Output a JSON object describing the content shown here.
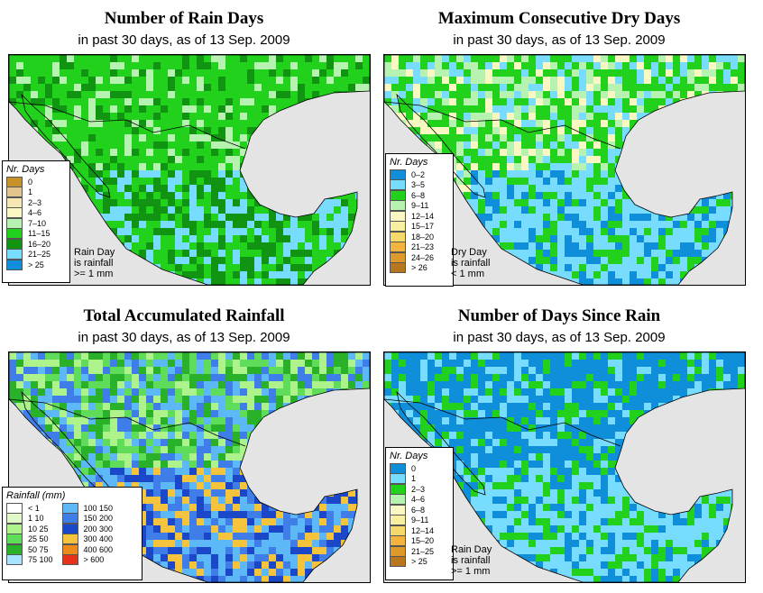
{
  "panels": [
    {
      "title": "Number of Rain Days",
      "subtitle": "in past 30 days, as of  13 Sep. 2009",
      "legend_title": "Nr. Days",
      "legend_items": [
        {
          "label": "0",
          "color": "#c8922a"
        },
        {
          "label": "1",
          "color": "#e2c48c"
        },
        {
          "label": "2–3",
          "color": "#f5e7b4"
        },
        {
          "label": "4–6",
          "color": "#f9f8c2"
        },
        {
          "label": "7–10",
          "color": "#b6f2b0"
        },
        {
          "label": "11–15",
          "color": "#22d11c"
        },
        {
          "label": "16–20",
          "color": "#119411"
        },
        {
          "label": "21–25",
          "color": "#78dcff"
        },
        {
          "label": "> 25",
          "color": "#0f8fd9"
        }
      ],
      "note": [
        "Rain Day",
        "is rainfall",
        ">= 1 mm"
      ],
      "palette": [
        "#22d11c",
        "#22d11c",
        "#119411",
        "#b6f2b0",
        "#22d11c"
      ],
      "palette_south": [
        "#78dcff",
        "#22d11c",
        "#119411"
      ]
    },
    {
      "title": "Maximum Consecutive Dry Days",
      "subtitle": "in past 30 days, as of  13 Sep. 2009",
      "legend_title": "Nr. Days",
      "legend_items": [
        {
          "label": "0–2",
          "color": "#0f8fd9"
        },
        {
          "label": "3–5",
          "color": "#78dcff"
        },
        {
          "label": "6–8",
          "color": "#22d11c"
        },
        {
          "label": "9–11",
          "color": "#b6f2b0"
        },
        {
          "label": "12–14",
          "color": "#f9f8c2"
        },
        {
          "label": "15–17",
          "color": "#f8f0a0"
        },
        {
          "label": "18–20",
          "color": "#f7d86a"
        },
        {
          "label": "21–23",
          "color": "#f2b43c"
        },
        {
          "label": "24–26",
          "color": "#dd9a2a"
        },
        {
          "label": "> 26",
          "color": "#b8761e"
        }
      ],
      "note": [
        "Dry Day",
        "is rainfall",
        "< 1 mm"
      ],
      "palette": [
        "#22d11c",
        "#b6f2b0",
        "#78dcff",
        "#22d11c",
        "#f9f8c2"
      ],
      "palette_south": [
        "#78dcff",
        "#78dcff",
        "#0f8fd9",
        "#22d11c"
      ]
    },
    {
      "title": "Total Accumulated Rainfall",
      "subtitle": "in past 30 days, as of  13 Sep. 2009",
      "legend_title": "Rainfall (mm)",
      "legend_items_left": [
        {
          "label": "< 1",
          "color": "#ffffff"
        },
        {
          "label": "1    10",
          "color": "#e2f8c8"
        },
        {
          "label": "10    25",
          "color": "#aef28c"
        },
        {
          "label": "25    50",
          "color": "#5fdc5a"
        },
        {
          "label": "50    75",
          "color": "#2ab12a"
        },
        {
          "label": "75    100",
          "color": "#a8e4ff"
        }
      ],
      "legend_items_right": [
        {
          "label": "100    150",
          "color": "#5db8f7"
        },
        {
          "label": "150    200",
          "color": "#3f7de8"
        },
        {
          "label": "200    300",
          "color": "#1a48c8"
        },
        {
          "label": "300    400",
          "color": "#f6c33c"
        },
        {
          "label": "400    600",
          "color": "#ee8a1c"
        },
        {
          "label": "> 600",
          "color": "#e6321a"
        }
      ],
      "palette": [
        "#5fdc5a",
        "#aef28c",
        "#3f7de8",
        "#5db8f7",
        "#2ab12a"
      ],
      "palette_south": [
        "#3f7de8",
        "#1a48c8",
        "#5db8f7",
        "#f6c33c"
      ]
    },
    {
      "title": "Number of Days Since Rain",
      "subtitle": "in past 30 days, as of  13 Sep. 2009",
      "legend_title": "Nr. Days",
      "legend_items": [
        {
          "label": "0",
          "color": "#0f8fd9"
        },
        {
          "label": "1",
          "color": "#78dcff"
        },
        {
          "label": "2–3",
          "color": "#22d11c"
        },
        {
          "label": "4–6",
          "color": "#b6f2b0"
        },
        {
          "label": "6–8",
          "color": "#f9f8c2"
        },
        {
          "label": "9–11",
          "color": "#f8f0a0"
        },
        {
          "label": "12–14",
          "color": "#f7d86a"
        },
        {
          "label": "15–20",
          "color": "#f2b43c"
        },
        {
          "label": "21–25",
          "color": "#dd9a2a"
        },
        {
          "label": "> 25",
          "color": "#b8761e"
        }
      ],
      "note": [
        "Rain Day",
        "is rainfall",
        ">= 1 mm"
      ],
      "palette": [
        "#0f8fd9",
        "#0f8fd9",
        "#78dcff",
        "#22d11c",
        "#0f8fd9"
      ],
      "palette_south": [
        "#78dcff",
        "#78dcff",
        "#0f8fd9",
        "#22d11c"
      ]
    }
  ]
}
